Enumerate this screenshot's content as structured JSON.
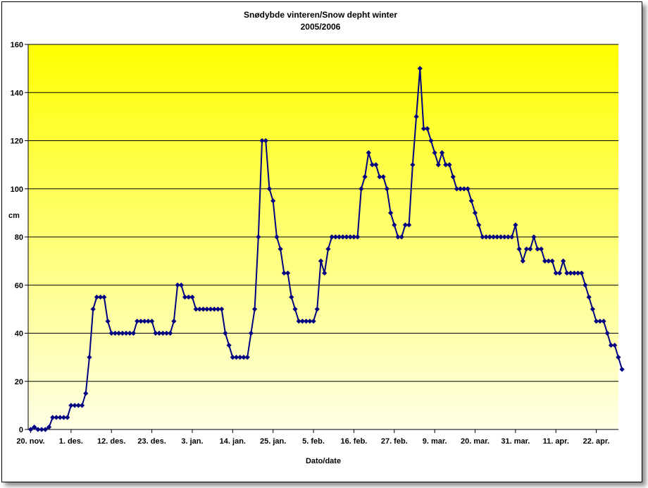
{
  "chart_data": {
    "type": "line",
    "title": "Snødybde vinteren/Snow depht winter",
    "subtitle": "2005/2006",
    "xlabel": "Dato/date",
    "ylabel": "cm",
    "ylim": [
      0,
      160
    ],
    "yticks": [
      0,
      20,
      40,
      60,
      80,
      100,
      120,
      140,
      160
    ],
    "xtick_labels": [
      "20. nov.",
      "1. des.",
      "12. des.",
      "23. des.",
      "3. jan.",
      "14. jan.",
      "25. jan.",
      "5. feb.",
      "16. feb.",
      "27. feb.",
      "9. mar.",
      "20. mar.",
      "31. mar.",
      "11. apr.",
      "22. apr."
    ],
    "x_day_offsets": [
      0,
      11,
      22,
      33,
      44,
      55,
      66,
      77,
      88,
      99,
      110,
      121,
      132,
      143,
      154
    ],
    "grid": true,
    "background": "yellow-gradient",
    "line_color": "#000080",
    "series": [
      {
        "values": [
          0,
          1,
          0,
          0,
          0,
          1,
          5,
          5,
          5,
          5,
          5,
          10,
          10,
          10,
          10,
          15,
          30,
          50,
          55,
          55,
          55,
          45,
          40,
          40,
          40,
          40,
          40,
          40,
          40,
          45,
          45,
          45,
          45,
          45,
          40,
          40,
          40,
          40,
          40,
          45,
          60,
          60,
          55,
          55,
          55,
          50,
          50,
          50,
          50,
          50,
          50,
          50,
          50,
          40,
          35,
          30,
          30,
          30,
          30,
          30,
          40,
          50,
          80,
          120,
          120,
          100,
          95,
          80,
          75,
          65,
          65,
          55,
          50,
          45,
          45,
          45,
          45,
          45,
          50,
          70,
          65,
          75,
          80,
          80,
          80,
          80,
          80,
          80,
          80,
          80,
          100,
          105,
          115,
          110,
          110,
          105,
          105,
          100,
          90,
          85,
          80,
          80,
          85,
          85,
          110,
          130,
          150,
          125,
          125,
          120,
          115,
          110,
          115,
          110,
          110,
          105,
          100,
          100,
          100,
          100,
          95,
          90,
          85,
          80,
          80,
          80,
          80,
          80,
          80,
          80,
          80,
          80,
          85,
          75,
          70,
          75,
          75,
          80,
          75,
          75,
          70,
          70,
          70,
          65,
          65,
          70,
          65,
          65,
          65,
          65,
          65,
          60,
          55,
          50,
          45,
          45,
          45,
          40,
          35,
          35,
          30,
          25
        ]
      }
    ]
  }
}
